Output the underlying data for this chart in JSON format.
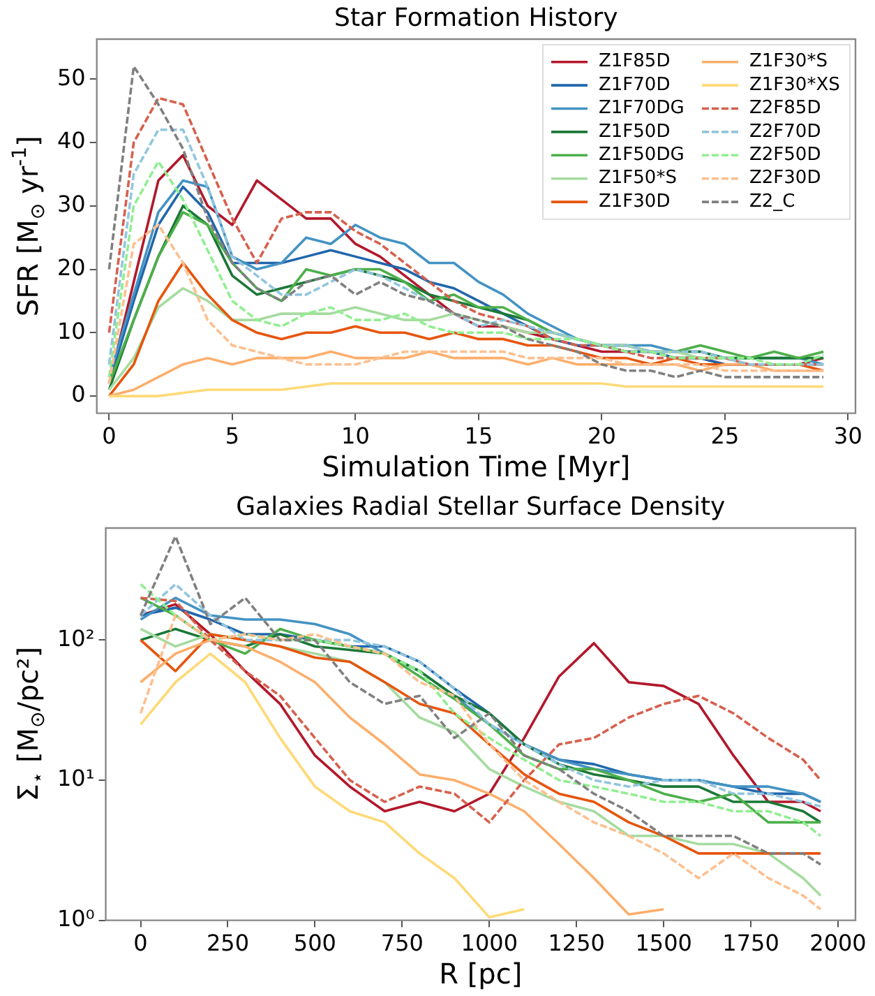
{
  "chart_data": [
    {
      "type": "line",
      "title": "Star Formation History",
      "xlabel": "Simulation Time [Myr]",
      "ylabel": "SFR [M$_{⊙}$ yr$^{-1}$]",
      "x": [
        0,
        1,
        2,
        3,
        4,
        5,
        6,
        7,
        8,
        9,
        10,
        11,
        12,
        13,
        14,
        15,
        16,
        17,
        18,
        19,
        20,
        21,
        22,
        23,
        24,
        25,
        26,
        27,
        28,
        29
      ],
      "xlim": [
        -0.5,
        30.3
      ],
      "ylim": [
        -2.7,
        56.3
      ],
      "xticks": [
        0,
        5,
        10,
        15,
        20,
        25,
        30
      ],
      "yticks": [
        0,
        10,
        20,
        30,
        40,
        50
      ],
      "legend": "top right",
      "marker": "none",
      "series": [
        {
          "name": "Z1F85D",
          "color": "#b2182b",
          "line_style": "solid",
          "values": [
            2,
            18,
            34,
            38,
            30,
            27,
            34,
            31,
            28,
            28,
            24,
            22,
            19,
            16,
            13,
            11,
            11,
            10,
            9,
            8,
            7,
            7,
            7,
            6,
            6,
            5,
            5,
            5,
            5,
            6
          ]
        },
        {
          "name": "Z1F70D",
          "color": "#2166ac",
          "line_style": "solid",
          "values": [
            2,
            15,
            27,
            33,
            29,
            21,
            21,
            21,
            22,
            23,
            22,
            21,
            20,
            18,
            17,
            15,
            13,
            11,
            9,
            8,
            8,
            7,
            7,
            6,
            6,
            5,
            5,
            5,
            5,
            5
          ]
        },
        {
          "name": "Z1F70DG",
          "color": "#4393c3",
          "line_style": "solid",
          "values": [
            3,
            16,
            29,
            34,
            33,
            22,
            20,
            21,
            25,
            24,
            27,
            25,
            24,
            21,
            21,
            18,
            16,
            13,
            11,
            9,
            8,
            8,
            8,
            7,
            7,
            6,
            6,
            6,
            6,
            5
          ]
        },
        {
          "name": "Z1F50D",
          "color": "#1b7837",
          "line_style": "solid",
          "values": [
            1,
            12,
            22,
            30,
            27,
            19,
            16,
            17,
            18,
            19,
            20,
            19,
            18,
            16,
            15,
            14,
            13,
            12,
            10,
            9,
            8,
            8,
            7,
            7,
            7,
            6,
            6,
            6,
            6,
            6
          ]
        },
        {
          "name": "Z1F50DG",
          "color": "#4daf4a",
          "line_style": "solid",
          "values": [
            2,
            12,
            22,
            29,
            27,
            21,
            17,
            15,
            20,
            19,
            20,
            20,
            18,
            15,
            16,
            14,
            14,
            12,
            10,
            9,
            8,
            8,
            7,
            7,
            8,
            7,
            6,
            7,
            6,
            7
          ]
        },
        {
          "name": "Z1F50*S",
          "color": "#a6dba0",
          "line_style": "solid",
          "values": [
            1,
            6,
            14,
            17,
            15,
            12,
            12,
            13,
            13,
            13,
            14,
            13,
            12,
            12,
            13,
            12,
            11,
            10,
            10,
            9,
            8,
            8,
            7,
            7,
            6,
            6,
            5,
            5,
            5,
            5
          ]
        },
        {
          "name": "Z1F30D",
          "color": "#e6550d",
          "line_style": "solid",
          "values": [
            0,
            5,
            15,
            21,
            16,
            12,
            10,
            9,
            10,
            10,
            11,
            10,
            10,
            9,
            10,
            9,
            9,
            8,
            8,
            7,
            6,
            6,
            5,
            6,
            5,
            5,
            5,
            5,
            5,
            4
          ]
        },
        {
          "name": "Z1F30*S",
          "color": "#fdae6b",
          "line_style": "solid",
          "values": [
            0,
            1,
            3,
            5,
            6,
            5,
            6,
            6,
            6,
            7,
            6,
            6,
            6,
            7,
            6,
            6,
            6,
            5,
            6,
            5,
            5,
            5,
            5,
            5,
            4,
            5,
            5,
            4,
            4,
            4
          ]
        },
        {
          "name": "Z1F30*XS",
          "color": "#fed976",
          "line_style": "solid",
          "values": [
            0,
            0,
            0,
            0.5,
            1,
            1,
            1,
            1,
            1.5,
            2,
            2,
            2,
            2,
            2,
            2,
            2,
            2,
            2,
            2,
            2,
            2,
            1.5,
            1.5,
            1.5,
            1.5,
            1.5,
            1.5,
            1.5,
            1.5,
            1.5
          ]
        },
        {
          "name": "Z2F85D",
          "color": "#d6604d",
          "line_style": "dashed",
          "values": [
            10,
            40,
            47,
            46,
            37,
            28,
            21,
            28,
            29,
            29,
            26,
            24,
            21,
            18,
            15,
            13,
            12,
            11,
            9,
            8,
            8,
            7,
            6,
            6,
            6,
            6,
            5,
            5,
            5,
            5
          ]
        },
        {
          "name": "Z2F70D",
          "color": "#92c5de",
          "line_style": "dashed",
          "values": [
            5,
            35,
            42,
            42,
            33,
            22,
            19,
            16,
            16,
            18,
            20,
            19,
            17,
            15,
            13,
            11,
            12,
            11,
            10,
            9,
            8,
            8,
            7,
            7,
            7,
            6,
            5,
            5,
            5,
            5
          ]
        },
        {
          "name": "Z2F50D",
          "color": "#90ee90",
          "line_style": "dashed",
          "values": [
            3,
            30,
            37,
            31,
            23,
            15,
            12,
            11,
            13,
            14,
            12,
            12,
            13,
            11,
            10,
            10,
            10,
            9,
            9,
            9,
            8,
            7,
            7,
            6,
            6,
            6,
            6,
            5,
            5,
            6.5
          ]
        },
        {
          "name": "Z2F30D",
          "color": "#fdbf8f",
          "line_style": "dashed",
          "values": [
            2,
            24,
            27,
            21,
            12,
            8,
            7,
            6,
            5,
            5,
            5,
            6,
            7,
            7,
            7,
            7,
            7,
            6,
            6,
            6,
            6,
            5,
            5,
            5,
            5,
            4,
            4,
            4,
            4,
            4
          ]
        },
        {
          "name": "Z2_C",
          "color": "#808080",
          "line_style": "dashed",
          "values": [
            20,
            52,
            46,
            39,
            28,
            21,
            17,
            15,
            18,
            19,
            16,
            18,
            16,
            15,
            13,
            12,
            11,
            9,
            8,
            7,
            5,
            4,
            4,
            3,
            4,
            3,
            3,
            3,
            3,
            3
          ]
        }
      ]
    },
    {
      "type": "line",
      "title": "Galaxies Radial Stellar Surface Density",
      "xlabel": "R [pc]",
      "ylabel": "Σ$_{⋆}$ [M$_{⊙}$/pc²]",
      "log": "y",
      "x": [
        0,
        100,
        200,
        300,
        400,
        500,
        600,
        700,
        800,
        900,
        1000,
        1100,
        1200,
        1300,
        1400,
        1500,
        1600,
        1700,
        1800,
        1900,
        1950
      ],
      "xlim": [
        -100,
        2050
      ],
      "ylim": [
        1,
        630
      ],
      "xticks": [
        0,
        250,
        500,
        750,
        1000,
        1250,
        1500,
        1750,
        2000
      ],
      "yticks": [
        {
          "value": 1,
          "label": "10⁰"
        },
        {
          "value": 10,
          "label": "10¹"
        },
        {
          "value": 100,
          "label": "10²"
        }
      ],
      "marker": "none",
      "series": [
        {
          "color": "#b2182b",
          "line_style": "solid",
          "values": [
            150,
            180,
            110,
            60,
            35,
            15,
            9,
            6,
            7,
            6,
            8,
            20,
            55,
            95,
            50,
            47,
            35,
            15,
            7,
            7,
            6
          ]
        },
        {
          "color": "#2166ac",
          "line_style": "solid",
          "values": [
            150,
            170,
            140,
            110,
            110,
            100,
            90,
            90,
            70,
            45,
            30,
            18,
            14,
            13,
            11,
            10,
            10,
            9,
            8,
            8,
            7
          ]
        },
        {
          "color": "#4393c3",
          "line_style": "solid",
          "values": [
            140,
            200,
            150,
            140,
            140,
            130,
            110,
            80,
            60,
            40,
            25,
            18,
            14,
            12,
            11,
            10,
            10,
            9,
            9,
            8,
            7
          ]
        },
        {
          "color": "#1b7837",
          "line_style": "solid",
          "values": [
            100,
            120,
            100,
            90,
            110,
            90,
            85,
            80,
            60,
            40,
            30,
            18,
            13,
            11,
            10,
            9,
            9,
            7,
            7,
            6,
            5
          ]
        },
        {
          "color": "#4daf4a",
          "line_style": "solid",
          "values": [
            200,
            150,
            100,
            80,
            120,
            100,
            90,
            80,
            55,
            38,
            25,
            15,
            12,
            12,
            10,
            8,
            7,
            8,
            5,
            5,
            5
          ]
        },
        {
          "color": "#a6dba0",
          "line_style": "solid",
          "values": [
            120,
            90,
            110,
            100,
            90,
            80,
            70,
            50,
            28,
            22,
            12,
            9,
            7,
            6,
            4,
            4,
            3.5,
            3.5,
            3,
            2,
            1.5
          ]
        },
        {
          "color": "#e6550d",
          "line_style": "solid",
          "values": [
            100,
            60,
            110,
            100,
            90,
            75,
            70,
            50,
            35,
            30,
            18,
            11,
            8,
            7,
            5,
            4,
            3,
            3,
            3,
            3,
            3
          ]
        },
        {
          "color": "#fdae6b",
          "line_style": "solid",
          "values": [
            50,
            80,
            100,
            90,
            70,
            50,
            28,
            18,
            11,
            10,
            8,
            6,
            3.5,
            2,
            1.1,
            1.2,
            null,
            null,
            null,
            null,
            null
          ]
        },
        {
          "color": "#fed976",
          "line_style": "solid",
          "values": [
            25,
            50,
            80,
            50,
            20,
            9,
            6,
            5,
            3,
            2,
            1.05,
            1.2,
            null,
            null,
            null,
            null,
            null,
            null,
            null,
            null,
            null
          ]
        },
        {
          "color": "#d6604d",
          "line_style": "dashed",
          "values": [
            200,
            190,
            100,
            60,
            40,
            20,
            10,
            7,
            9,
            8,
            5,
            10,
            18,
            20,
            28,
            35,
            40,
            30,
            20,
            14,
            10
          ]
        },
        {
          "color": "#92c5de",
          "line_style": "dashed",
          "values": [
            150,
            250,
            150,
            100,
            100,
            100,
            100,
            90,
            70,
            45,
            25,
            18,
            13,
            10,
            9,
            10,
            10,
            8,
            8,
            7,
            6.5
          ]
        },
        {
          "color": "#90ee90",
          "line_style": "dashed",
          "values": [
            250,
            150,
            100,
            110,
            100,
            100,
            90,
            80,
            60,
            30,
            20,
            14,
            10,
            9,
            8,
            7,
            7,
            6,
            6,
            5,
            4
          ]
        },
        {
          "color": "#fdbf8f",
          "line_style": "dashed",
          "values": [
            30,
            150,
            100,
            110,
            100,
            110,
            90,
            80,
            50,
            40,
            18,
            10,
            7,
            5,
            4,
            3,
            2,
            3,
            2,
            1.5,
            1.2
          ]
        },
        {
          "color": "#808080",
          "line_style": "dashed",
          "values": [
            150,
            550,
            130,
            200,
            100,
            100,
            50,
            35,
            40,
            20,
            30,
            15,
            12,
            8,
            6,
            4,
            4,
            4,
            3,
            3,
            2.5
          ]
        }
      ]
    }
  ]
}
